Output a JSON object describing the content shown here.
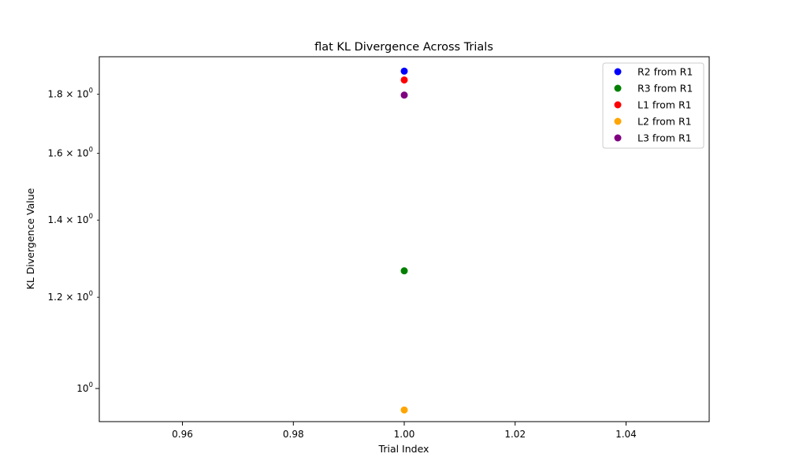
{
  "chart_data": {
    "type": "scatter",
    "title": "flat KL Divergence Across Trials",
    "xlabel": "Trial Index",
    "ylabel": "KL Divergence Value",
    "xlim": [
      0.945,
      1.055
    ],
    "ylim": [
      0.936,
      1.94
    ],
    "yscale": "log",
    "grid": false,
    "legend_position": "top-right",
    "x_ticks": [
      {
        "value": 0.96,
        "label": "0.96"
      },
      {
        "value": 0.98,
        "label": "0.98"
      },
      {
        "value": 1.0,
        "label": "1.00"
      },
      {
        "value": 1.02,
        "label": "1.02"
      },
      {
        "value": 1.04,
        "label": "1.04"
      }
    ],
    "y_major_ticks": [
      {
        "value": 1.0,
        "base": "10",
        "exp": "0"
      }
    ],
    "y_minor_ticks": [
      {
        "value": 1.2,
        "mantissa": "1.2",
        "base": "10",
        "exp": "0"
      },
      {
        "value": 1.4,
        "mantissa": "1.4",
        "base": "10",
        "exp": "0"
      },
      {
        "value": 1.6,
        "mantissa": "1.6",
        "base": "10",
        "exp": "0"
      },
      {
        "value": 1.8,
        "mantissa": "1.8",
        "base": "10",
        "exp": "0"
      }
    ],
    "series": [
      {
        "name": "R2 from R1",
        "color": "#0000ff",
        "x": [
          1.0
        ],
        "y": [
          1.885
        ]
      },
      {
        "name": "R3 from R1",
        "color": "#008000",
        "x": [
          1.0
        ],
        "y": [
          1.265
        ]
      },
      {
        "name": "L1 from R1",
        "color": "#ff0000",
        "x": [
          1.0
        ],
        "y": [
          1.852
        ]
      },
      {
        "name": "L2 from R1",
        "color": "#ffa500",
        "x": [
          1.0
        ],
        "y": [
          0.958
        ]
      },
      {
        "name": "L3 from R1",
        "color": "#800080",
        "x": [
          1.0
        ],
        "y": [
          1.797
        ]
      }
    ]
  }
}
